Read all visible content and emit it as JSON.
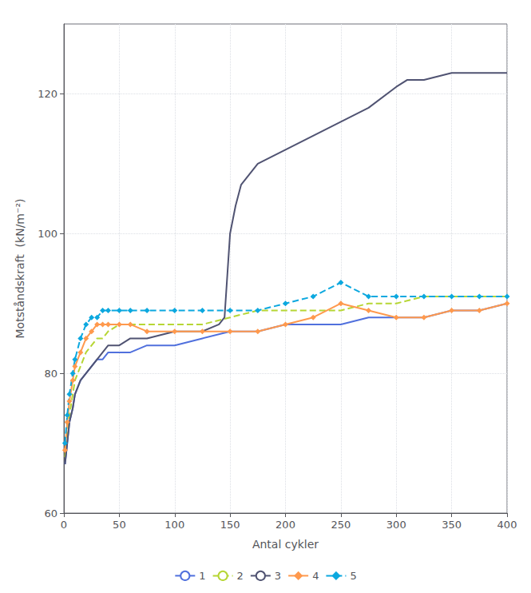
{
  "chart_data": {
    "type": "line",
    "xlabel": "Antal cykler",
    "ylabel": "Motståndskraft  (kN/m⁻²)",
    "xlim": [
      0,
      400
    ],
    "ylim": [
      60,
      130
    ],
    "xticks": [
      0,
      50,
      100,
      150,
      200,
      250,
      300,
      350,
      400
    ],
    "yticks": [
      60,
      80,
      100,
      120
    ],
    "grid": true,
    "legend": "bottom",
    "series": [
      {
        "name": "1",
        "line_style": "solid",
        "x": [
          1,
          3,
          5,
          8,
          10,
          15,
          20,
          25,
          30,
          35,
          40,
          50,
          60,
          75,
          100,
          125,
          150,
          175,
          200,
          225,
          250,
          275,
          300,
          325,
          350,
          375,
          400
        ],
        "values": [
          67,
          70,
          73,
          75,
          77,
          79,
          80,
          81,
          82,
          82,
          83,
          83,
          83,
          84,
          84,
          85,
          86,
          86,
          87,
          87,
          87,
          88,
          88,
          88,
          89,
          89,
          90
        ]
      },
      {
        "name": "2",
        "line_style": "dashed",
        "x": [
          1,
          3,
          5,
          8,
          10,
          15,
          20,
          25,
          30,
          35,
          40,
          50,
          60,
          75,
          100,
          125,
          150,
          175,
          200,
          225,
          250,
          275,
          300,
          325,
          350,
          375,
          400
        ],
        "values": [
          68,
          71,
          74,
          77,
          79,
          81,
          83,
          84,
          85,
          85,
          86,
          87,
          87,
          87,
          87,
          87,
          88,
          89,
          89,
          89,
          89,
          90,
          90,
          91,
          91,
          91,
          91
        ]
      },
      {
        "name": "3",
        "line_style": "solid",
        "x": [
          1,
          3,
          5,
          8,
          10,
          15,
          20,
          25,
          30,
          35,
          40,
          50,
          60,
          75,
          100,
          125,
          140,
          145,
          150,
          155,
          160,
          175,
          200,
          225,
          250,
          275,
          300,
          310,
          325,
          350,
          375,
          400
        ],
        "values": [
          67,
          70,
          73,
          75,
          77,
          79,
          80,
          81,
          82,
          83,
          84,
          84,
          85,
          85,
          86,
          86,
          87,
          88,
          100,
          104,
          107,
          110,
          112,
          114,
          116,
          118,
          121,
          122,
          122,
          123,
          123,
          123
        ]
      },
      {
        "name": "4",
        "line_style": "solid",
        "marker": "diamond",
        "x": [
          1,
          3,
          5,
          8,
          10,
          15,
          20,
          25,
          30,
          35,
          40,
          50,
          60,
          75,
          100,
          125,
          150,
          175,
          200,
          225,
          250,
          275,
          300,
          325,
          350,
          375,
          400
        ],
        "values": [
          69,
          73,
          76,
          79,
          81,
          83,
          85,
          86,
          87,
          87,
          87,
          87,
          87,
          86,
          86,
          86,
          86,
          86,
          87,
          88,
          90,
          89,
          88,
          88,
          89,
          89,
          90
        ]
      },
      {
        "name": "5",
        "line_style": "dashed",
        "marker": "diamond",
        "x": [
          1,
          3,
          5,
          8,
          10,
          15,
          20,
          25,
          30,
          35,
          40,
          50,
          60,
          75,
          100,
          125,
          150,
          175,
          200,
          225,
          250,
          275,
          300,
          325,
          350,
          375,
          400
        ],
        "values": [
          70,
          74,
          77,
          80,
          82,
          85,
          87,
          88,
          88,
          89,
          89,
          89,
          89,
          89,
          89,
          89,
          89,
          89,
          90,
          91,
          93,
          91,
          91,
          91,
          91,
          91,
          91
        ]
      }
    ]
  }
}
